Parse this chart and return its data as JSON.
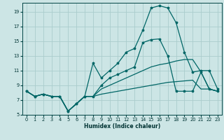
{
  "xlabel": "Humidex (Indice chaleur)",
  "bg_color": "#cce5e5",
  "grid_color": "#aacccc",
  "line_color": "#006666",
  "xlim": [
    -0.5,
    23.5
  ],
  "ylim": [
    5,
    20.2
  ],
  "yticks": [
    5,
    7,
    9,
    11,
    13,
    15,
    17,
    19
  ],
  "xticks": [
    0,
    1,
    2,
    3,
    4,
    5,
    6,
    7,
    8,
    9,
    10,
    11,
    12,
    13,
    14,
    15,
    16,
    17,
    18,
    19,
    20,
    21,
    22,
    23
  ],
  "line_main_x": [
    0,
    1,
    2,
    3,
    4,
    5,
    6,
    7,
    8,
    9,
    10,
    11,
    12,
    13,
    14,
    15,
    16,
    17,
    18,
    19,
    20,
    21,
    22,
    23
  ],
  "line_main_y": [
    8.2,
    7.5,
    7.8,
    7.5,
    7.5,
    5.5,
    6.5,
    7.5,
    12.0,
    10.0,
    11.0,
    12.0,
    13.5,
    14.0,
    16.5,
    19.5,
    19.8,
    19.5,
    17.5,
    13.5,
    10.8,
    11.0,
    11.0,
    8.5
  ],
  "line_mid_x": [
    0,
    1,
    2,
    3,
    4,
    5,
    6,
    7,
    8,
    9,
    10,
    11,
    12,
    13,
    14,
    15,
    16,
    17,
    18,
    19,
    20,
    21,
    22,
    23
  ],
  "line_mid_y": [
    8.2,
    7.5,
    7.8,
    7.5,
    7.5,
    5.5,
    6.5,
    7.5,
    7.5,
    9.0,
    10.0,
    10.5,
    11.0,
    11.5,
    14.8,
    15.2,
    15.3,
    13.0,
    8.2,
    8.2,
    8.2,
    10.8,
    8.5,
    8.2
  ],
  "line_upper_x": [
    0,
    1,
    2,
    3,
    4,
    5,
    6,
    7,
    8,
    9,
    10,
    11,
    12,
    13,
    14,
    15,
    16,
    17,
    18,
    19,
    20,
    21,
    22,
    23
  ],
  "line_upper_y": [
    8.2,
    7.5,
    7.8,
    7.5,
    7.5,
    5.5,
    6.5,
    7.5,
    7.5,
    8.5,
    9.0,
    9.5,
    10.0,
    10.5,
    11.0,
    11.5,
    11.8,
    12.0,
    12.3,
    12.5,
    12.5,
    10.8,
    8.5,
    8.2
  ],
  "line_lower_x": [
    0,
    1,
    2,
    3,
    4,
    5,
    6,
    7,
    8,
    9,
    10,
    11,
    12,
    13,
    14,
    15,
    16,
    17,
    18,
    19,
    20,
    21,
    22,
    23
  ],
  "line_lower_y": [
    8.2,
    7.5,
    7.8,
    7.5,
    7.5,
    5.5,
    6.5,
    7.5,
    7.5,
    7.8,
    8.0,
    8.2,
    8.4,
    8.6,
    8.8,
    9.0,
    9.2,
    9.4,
    9.5,
    9.6,
    9.7,
    8.5,
    8.5,
    8.2
  ]
}
